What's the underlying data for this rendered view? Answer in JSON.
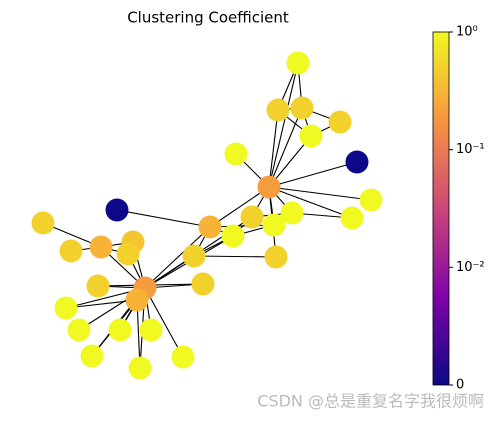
{
  "chart_data": {
    "type": "network",
    "title": "Clustering Coefficient",
    "values": [
      1,
      0.5,
      0.5,
      0.5,
      1,
      1,
      0,
      0.2,
      1,
      1,
      1,
      1,
      0.5,
      1,
      0.3,
      0.5,
      0.5,
      0.5,
      0,
      0.5,
      0.5,
      0.3,
      0.4,
      0.5,
      0.5,
      0.2,
      0.3,
      1,
      1,
      1,
      1,
      1,
      1,
      1
    ],
    "edges": [
      [
        0,
        1
      ],
      [
        0,
        2
      ],
      [
        1,
        2
      ],
      [
        1,
        4
      ],
      [
        2,
        4
      ],
      [
        2,
        3
      ],
      [
        3,
        4
      ],
      [
        1,
        7
      ],
      [
        2,
        7
      ],
      [
        4,
        7
      ],
      [
        0,
        7
      ],
      [
        5,
        7
      ],
      [
        6,
        7
      ],
      [
        7,
        8
      ],
      [
        7,
        9
      ],
      [
        7,
        10
      ],
      [
        7,
        11
      ],
      [
        7,
        12
      ],
      [
        7,
        14
      ],
      [
        7,
        15
      ],
      [
        10,
        9
      ],
      [
        10,
        12
      ],
      [
        12,
        13
      ],
      [
        11,
        14
      ],
      [
        14,
        16
      ],
      [
        13,
        14
      ],
      [
        18,
        14
      ],
      [
        19,
        21
      ],
      [
        20,
        21
      ],
      [
        21,
        22
      ],
      [
        21,
        23
      ],
      [
        21,
        25
      ],
      [
        22,
        25
      ],
      [
        23,
        25
      ],
      [
        24,
        25
      ],
      [
        25,
        26
      ],
      [
        25,
        27
      ],
      [
        25,
        28
      ],
      [
        25,
        29
      ],
      [
        25,
        30
      ],
      [
        25,
        31
      ],
      [
        25,
        32
      ],
      [
        25,
        33
      ],
      [
        26,
        27
      ],
      [
        26,
        29
      ],
      [
        26,
        31
      ],
      [
        26,
        32
      ],
      [
        25,
        16
      ],
      [
        25,
        17
      ],
      [
        25,
        13
      ],
      [
        25,
        14
      ],
      [
        24,
        17
      ],
      [
        22,
        23
      ],
      [
        16,
        15
      ],
      [
        16,
        13
      ],
      [
        12,
        25
      ],
      [
        11,
        13
      ]
    ],
    "colorbar": {
      "log": true,
      "clim": [
        0.001,
        1
      ],
      "ticks": [
        {
          "value": 1,
          "label": "10⁰"
        },
        {
          "value": 0.1,
          "label": "10⁻¹"
        },
        {
          "value": 0.01,
          "label": "10⁻²"
        },
        0
      ]
    },
    "watermark": "CSDN @总是重复名字我很烦啊"
  }
}
